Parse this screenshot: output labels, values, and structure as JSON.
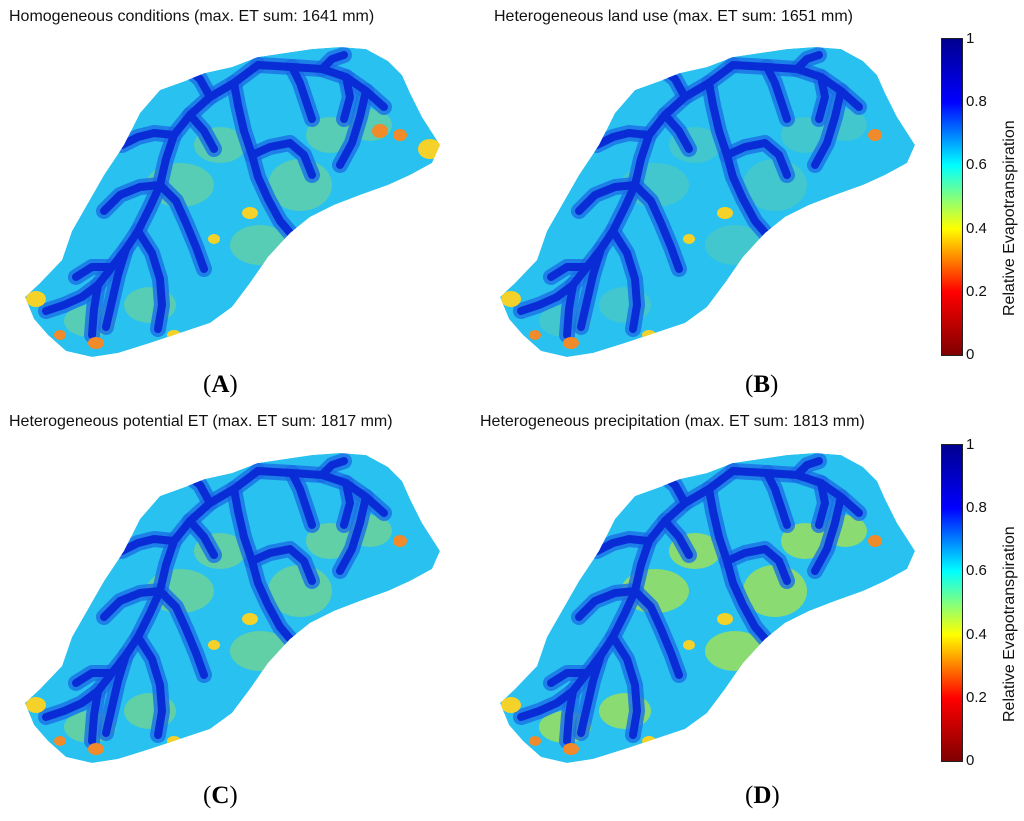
{
  "panels": [
    {
      "title": "Homogeneous conditions (max. ET sum: 1641 mm)",
      "letter": "A",
      "max_et_sum_mm": 1641,
      "background_class": "mixed"
    },
    {
      "title": "Heterogeneous land use (max. ET sum: 1651 mm)",
      "letter": "B",
      "max_et_sum_mm": 1651,
      "background_class": "uniform"
    },
    {
      "title": "Heterogeneous potential ET (max. ET sum: 1817 mm)",
      "letter": "C",
      "max_et_sum_mm": 1817,
      "background_class": "cyan-green"
    },
    {
      "title": "Heterogeneous precipitation (max. ET sum: 1813 mm)",
      "letter": "D",
      "max_et_sum_mm": 1813,
      "background_class": "green-patches"
    }
  ],
  "colorbar": {
    "label": "Relative Evapotranspiration",
    "ticks": [
      "1",
      "0.8",
      "0.6",
      "0.4",
      "0.2",
      "0"
    ],
    "range": [
      0,
      1
    ],
    "colormap": "jet",
    "colormap_stops": [
      "#800000",
      "#ff0000",
      "#ffff00",
      "#00ffff",
      "#0000ff",
      "#00008f"
    ]
  },
  "colors": {
    "background_cyan": "#28c1f0",
    "stream_dark": "#0a2cd6",
    "stream_mid": "#1a6ee6",
    "green_patch": "#8fdc6a",
    "yellow_patch": "#f5d22a",
    "orange_patch": "#f08a2a"
  }
}
